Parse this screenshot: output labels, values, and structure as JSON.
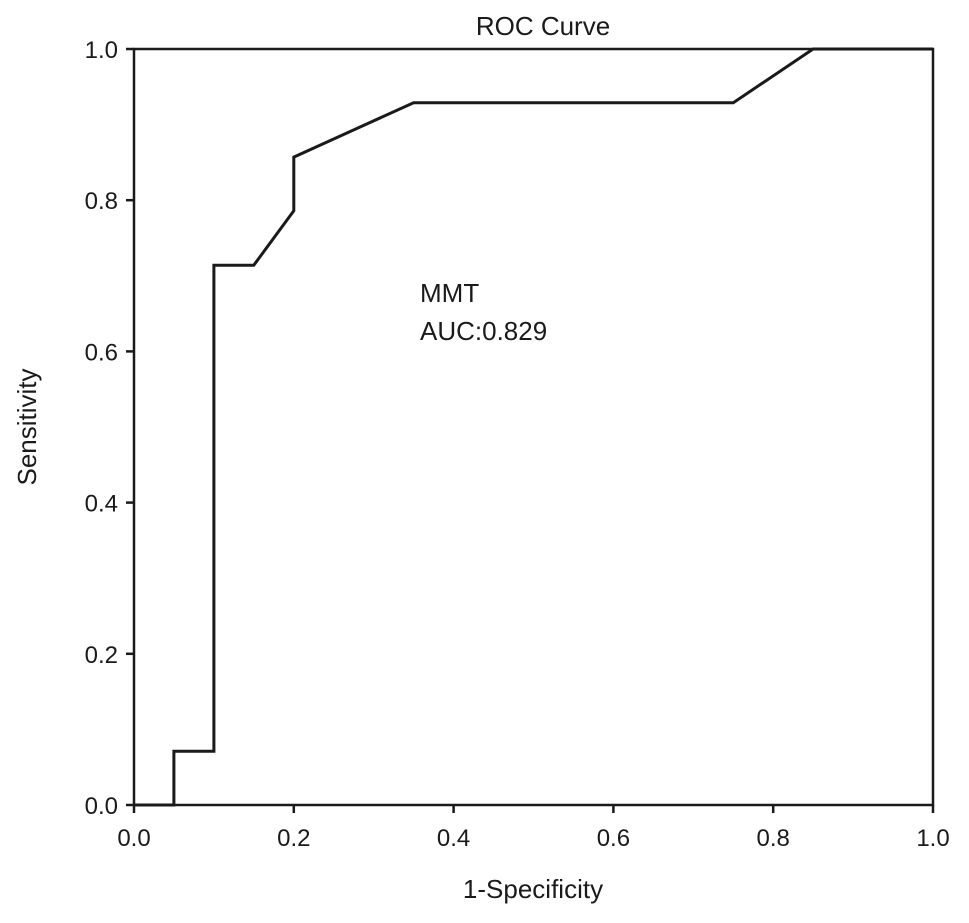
{
  "chart_data": {
    "type": "line",
    "title": "ROC Curve",
    "xlabel": "1-Specificity",
    "ylabel": "Sensitivity",
    "xlim": [
      0.0,
      1.0
    ],
    "ylim": [
      0.0,
      1.0
    ],
    "x_ticks": [
      "0.0",
      "0.2",
      "0.4",
      "0.6",
      "0.8",
      "1.0"
    ],
    "y_ticks": [
      "0.0",
      "0.2",
      "0.4",
      "0.6",
      "0.8",
      "1.0"
    ],
    "grid": false,
    "series": [
      {
        "x": [
          0.0,
          0.05,
          0.05,
          0.1,
          0.1,
          0.15,
          0.2,
          0.2,
          0.35,
          0.75,
          0.85,
          1.0
        ],
        "y": [
          0.0,
          0.0,
          0.071,
          0.071,
          0.714,
          0.714,
          0.786,
          0.857,
          0.929,
          0.929,
          1.0,
          1.0
        ]
      }
    ],
    "annotations": [
      "MMT",
      "AUC:0.829"
    ],
    "colors": {
      "line": "#1a1a1a",
      "axis": "#1a1a1a",
      "background": "#ffffff"
    }
  }
}
